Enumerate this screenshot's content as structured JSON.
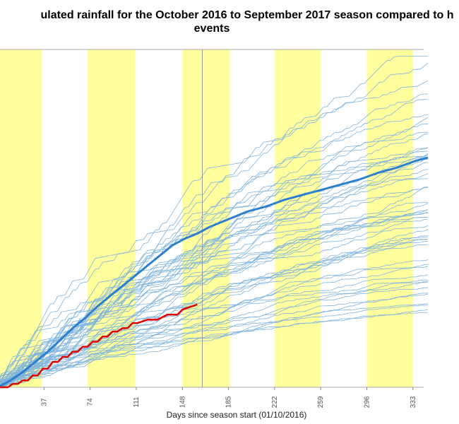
{
  "chart_data": {
    "type": "line",
    "title_line1": "ulated rainfall for the October 2016 to September 2017 season compared to h",
    "title_line2": "events",
    "xlabel": "Days since season start (01/10/2016)",
    "x_ticks": [
      37,
      74,
      111,
      148,
      185,
      222,
      259,
      296,
      333
    ],
    "xlim": [
      0,
      345
    ],
    "ylim": [
      0,
      1
    ],
    "current_day_marker": 164,
    "band_color": "#ffff9e",
    "shaded_bands": [
      [
        0,
        35
      ],
      [
        72,
        110
      ],
      [
        148,
        186
      ],
      [
        222,
        259
      ],
      [
        296,
        333
      ]
    ],
    "colors": {
      "historical": "#7fb3dc",
      "mean": "#2f7fcf",
      "current": "#e00000",
      "marker": "#999999"
    },
    "series": [
      {
        "x": [
          0,
          10,
          20,
          30,
          40,
          50,
          60,
          70,
          80,
          90,
          100,
          110,
          120,
          130,
          140,
          150,
          160,
          170,
          180,
          190,
          200,
          215,
          230,
          245,
          260,
          275,
          290,
          305,
          320,
          335,
          345
        ],
        "values": [
          0,
          0.02,
          0.045,
          0.075,
          0.105,
          0.14,
          0.175,
          0.205,
          0.24,
          0.27,
          0.3,
          0.33,
          0.36,
          0.39,
          0.42,
          0.44,
          0.455,
          0.475,
          0.49,
          0.505,
          0.52,
          0.535,
          0.555,
          0.57,
          0.585,
          0.6,
          0.615,
          0.635,
          0.65,
          0.67,
          0.68
        ]
      },
      {
        "x": [
          0,
          8,
          12,
          16,
          20,
          24,
          28,
          32,
          36,
          40,
          44,
          48,
          52,
          56,
          60,
          64,
          68,
          72,
          76,
          80,
          84,
          88,
          92,
          96,
          100,
          104,
          108,
          112,
          120,
          128,
          136,
          144,
          148,
          152,
          160
        ],
        "values": [
          0,
          0,
          0.01,
          0.01,
          0.02,
          0.02,
          0.035,
          0.035,
          0.055,
          0.055,
          0.075,
          0.075,
          0.09,
          0.09,
          0.105,
          0.105,
          0.12,
          0.12,
          0.135,
          0.135,
          0.15,
          0.15,
          0.165,
          0.165,
          0.175,
          0.175,
          0.19,
          0.19,
          0.2,
          0.2,
          0.215,
          0.215,
          0.23,
          0.235,
          0.245
        ]
      }
    ],
    "historical_note": "many thin historical cumulative lines"
  }
}
